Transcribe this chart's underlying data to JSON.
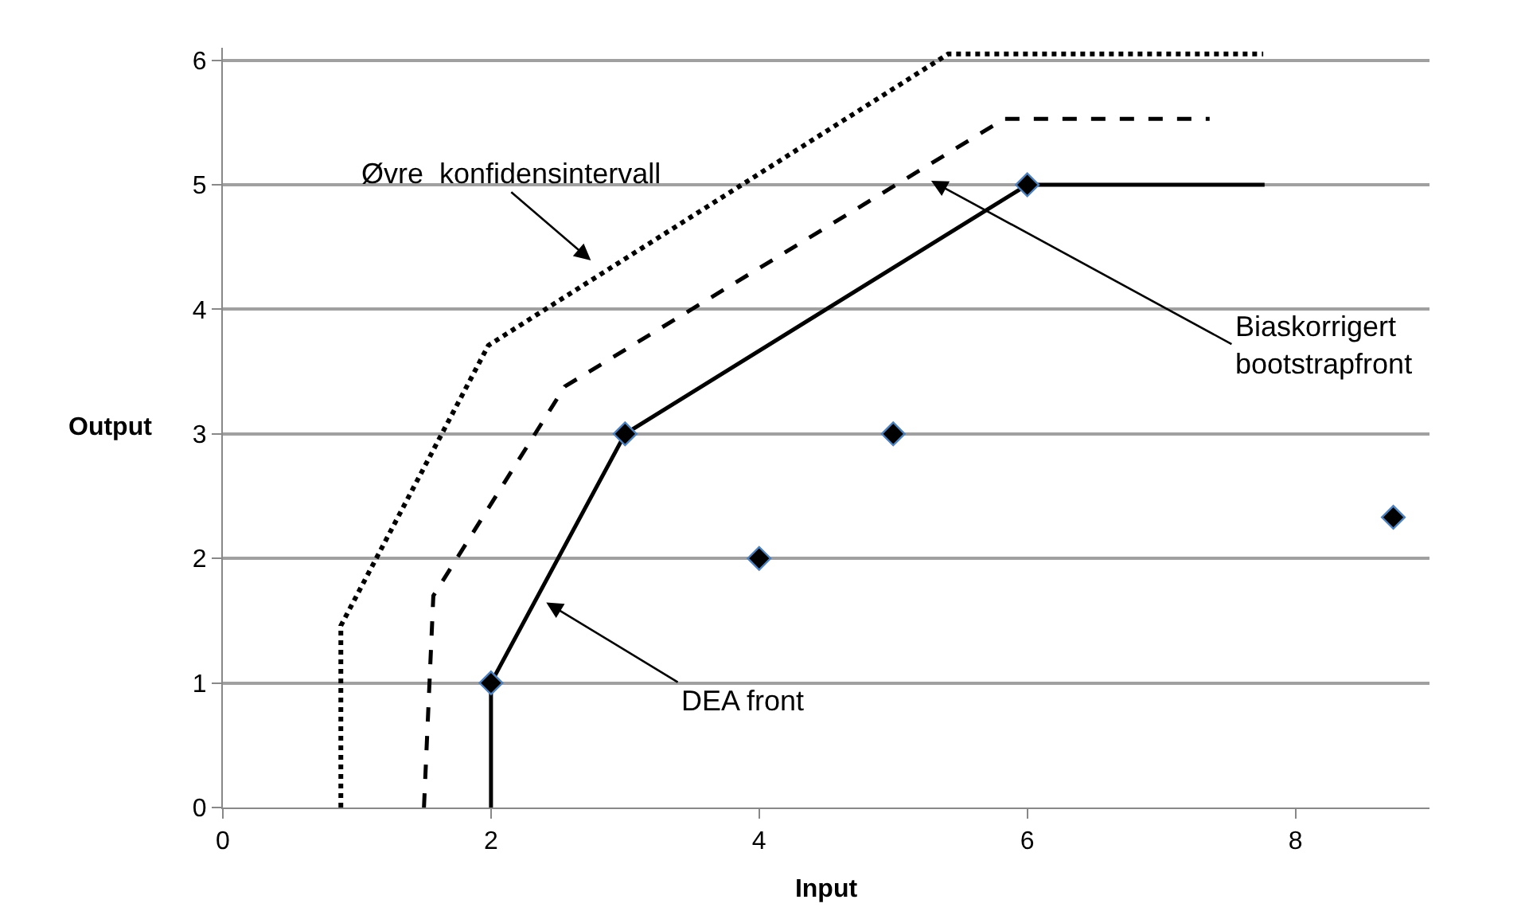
{
  "chart_data": {
    "type": "line",
    "xlabel": "Input",
    "ylabel": "Output",
    "xlim": [
      0,
      9
    ],
    "xticks": [
      0,
      2,
      4,
      6,
      8
    ],
    "ylim": [
      0,
      6.1
    ],
    "yticks": [
      0,
      1,
      2,
      3,
      4,
      5,
      6
    ],
    "grid": "y",
    "series": [
      {
        "line_style": "dotted",
        "marker": "none",
        "color": "#000000",
        "x": [
          0.88,
          0.88,
          1.98,
          5.41,
          7.76
        ],
        "values": [
          0,
          1.46,
          3.71,
          6.05,
          6.05
        ]
      },
      {
        "line_style": "dashed",
        "marker": "none",
        "color": "#000000",
        "x": [
          1.5,
          1.57,
          2.55,
          5.83,
          7.36
        ],
        "values": [
          0,
          1.7,
          3.38,
          5.53,
          5.53
        ]
      },
      {
        "line_style": "solid",
        "marker": "none",
        "color": "#000000",
        "x": [
          2,
          2,
          3,
          6,
          7.77
        ],
        "values": [
          0,
          1,
          3,
          5,
          5
        ]
      },
      {
        "type": "scatter",
        "marker": "diamond",
        "color": "#000000",
        "x": [
          2,
          3,
          4,
          5,
          6,
          8.73
        ],
        "values": [
          1,
          3,
          2,
          3,
          5,
          2.33
        ]
      }
    ],
    "annotations": [
      "Øvre  konfidensintervall",
      "Biaskorrigert\nbootstrapfront",
      "DEA front"
    ]
  }
}
